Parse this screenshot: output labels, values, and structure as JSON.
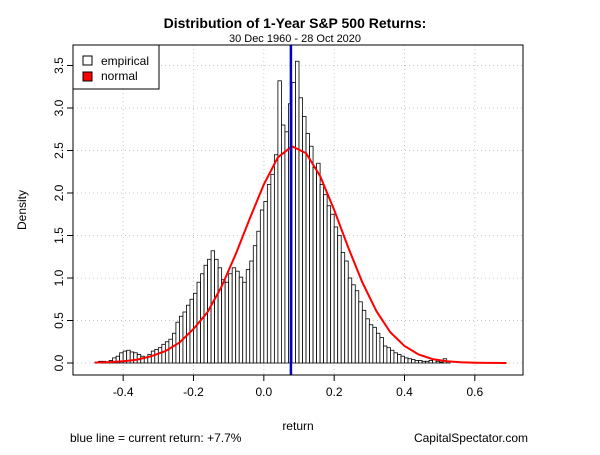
{
  "chart_data": {
    "type": "bar",
    "title": "Distribution of 1-Year S&P 500 Returns:",
    "subtitle": "30 Dec 1960 - 28 Oct 2020",
    "xlabel": "return",
    "ylabel": "Density",
    "xlim": [
      -0.5,
      0.7
    ],
    "ylim": [
      0,
      3.6
    ],
    "x_ticks": [
      -0.4,
      -0.2,
      0.0,
      0.2,
      0.4,
      0.6
    ],
    "x_tick_labels": [
      "-0.4",
      "-0.2",
      "0.0",
      "0.2",
      "0.4",
      "0.6"
    ],
    "y_ticks": [
      0.0,
      0.5,
      1.0,
      1.5,
      2.0,
      2.5,
      3.0,
      3.5
    ],
    "y_tick_labels": [
      "0.0",
      "0.5",
      "1.0",
      "1.5",
      "2.0",
      "2.5",
      "3.0",
      "3.5"
    ],
    "grid": true,
    "legend_position": "top-left",
    "legend": [
      {
        "label": "empirical",
        "color": "#ffffff",
        "kind": "box"
      },
      {
        "label": "normal",
        "color": "#ff0000",
        "kind": "fill"
      }
    ],
    "bin_width": 0.01,
    "bins_start": -0.48,
    "series": [
      {
        "name": "empirical",
        "type": "histogram",
        "values": [
          0.01,
          0.02,
          0.02,
          0.01,
          0.03,
          0.06,
          0.08,
          0.12,
          0.14,
          0.15,
          0.13,
          0.12,
          0.1,
          0.08,
          0.07,
          0.1,
          0.14,
          0.16,
          0.18,
          0.22,
          0.25,
          0.28,
          0.35,
          0.48,
          0.55,
          0.6,
          0.68,
          0.75,
          0.82,
          0.95,
          1.05,
          1.15,
          1.22,
          1.32,
          1.22,
          1.12,
          0.98,
          0.95,
          1.05,
          1.12,
          1.08,
          1.01,
          0.95,
          1.1,
          1.2,
          1.38,
          1.55,
          1.8,
          1.9,
          2.1,
          2.22,
          2.45,
          3.32,
          2.8,
          2.72,
          3.05,
          3.3,
          3.55,
          3.12,
          2.9,
          2.7,
          2.55,
          2.3,
          2.35,
          2.1,
          1.98,
          1.85,
          1.75,
          1.6,
          1.5,
          1.3,
          1.2,
          1.0,
          0.92,
          0.85,
          0.72,
          0.62,
          0.52,
          0.45,
          0.42,
          0.35,
          0.3,
          0.2,
          0.18,
          0.15,
          0.12,
          0.1,
          0.08,
          0.06,
          0.05,
          0.04,
          0.03,
          0.03,
          0.02,
          0.02,
          0.03,
          0.04,
          0.02,
          0.01,
          0.05,
          0.02
        ]
      },
      {
        "name": "normal",
        "type": "line",
        "color": "#ff0000",
        "x": [
          -0.48,
          -0.44,
          -0.4,
          -0.36,
          -0.32,
          -0.28,
          -0.24,
          -0.2,
          -0.16,
          -0.12,
          -0.08,
          -0.04,
          0.0,
          0.04,
          0.08,
          0.12,
          0.16,
          0.2,
          0.24,
          0.28,
          0.32,
          0.36,
          0.4,
          0.44,
          0.48,
          0.52,
          0.56,
          0.6,
          0.64,
          0.69
        ],
        "y": [
          0.005,
          0.01,
          0.02,
          0.04,
          0.08,
          0.14,
          0.24,
          0.4,
          0.6,
          0.9,
          1.28,
          1.7,
          2.1,
          2.42,
          2.55,
          2.47,
          2.2,
          1.8,
          1.36,
          0.95,
          0.61,
          0.36,
          0.2,
          0.1,
          0.046,
          0.02,
          0.008,
          0.003,
          0.001,
          0.0
        ]
      }
    ],
    "vline": {
      "x": 0.077,
      "color": "#0000cc"
    }
  },
  "footer": {
    "left_note": "blue line = current return: +7.7%",
    "source": "CapitalSpectator.com"
  }
}
